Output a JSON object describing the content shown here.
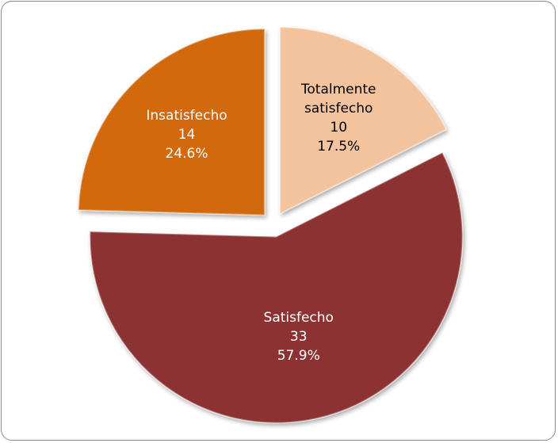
{
  "chart_data": {
    "type": "pie",
    "categories": [
      "Totalmente satisfecho",
      "Satisfecho",
      "Insatisfecho"
    ],
    "values": [
      10,
      33,
      14
    ],
    "percent_labels": [
      "17.5%",
      "57.9%",
      "24.6%"
    ],
    "colors": [
      "#f3c39d",
      "#8c3232",
      "#d2690f"
    ],
    "label_colors": [
      "#000000",
      "#ffffff",
      "#ffffff"
    ],
    "exploded": true
  }
}
